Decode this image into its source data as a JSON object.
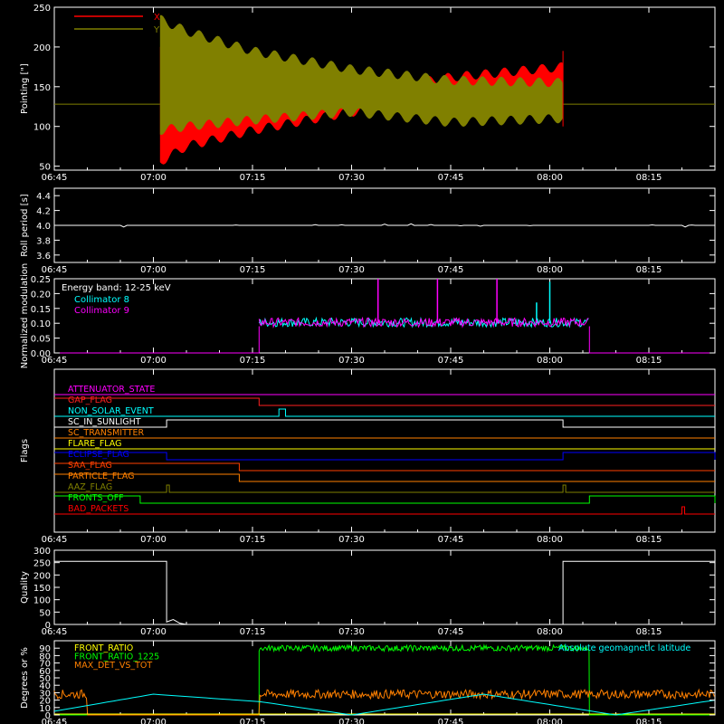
{
  "chart_data": [
    {
      "id": "pointing",
      "type": "line",
      "ylabel": "Pointing [\"]",
      "ylim": [
        45,
        250
      ],
      "yticks": [
        50,
        100,
        150,
        200,
        250
      ],
      "legend": [
        "X",
        "Y"
      ],
      "legend_position": "top-left",
      "xticks": [
        "06:45",
        "07:00",
        "07:15",
        "07:30",
        "07:45",
        "08:00",
        "08:15"
      ],
      "series": [
        {
          "name": "X",
          "color": "#ff0000",
          "envelope": {
            "t": [
              "07:01",
              "07:05",
              "07:15",
              "07:30",
              "07:45",
              "08:02"
            ],
            "low": [
              55,
              75,
              95,
              118,
              130,
              140
            ],
            "high": [
              200,
              165,
              148,
              142,
              162,
              175
            ]
          }
        },
        {
          "name": "Y",
          "color": "#808000",
          "envelope": {
            "t": [
              "07:01",
              "07:05",
              "07:15",
              "07:30",
              "07:45",
              "08:02"
            ],
            "low": [
              95,
              100,
              108,
              118,
              105,
              110
            ],
            "high": [
              235,
              220,
              195,
              172,
              158,
              155
            ]
          }
        }
      ],
      "baseline": {
        "value": 128,
        "color": "#808000"
      },
      "baseline_x": {
        "value": 128,
        "color": "#ff0000"
      },
      "data_start": "07:01",
      "data_end": "08:02"
    },
    {
      "id": "roll",
      "type": "line",
      "ylabel": "Roll period [s]",
      "ylim": [
        3.5,
        4.5
      ],
      "yticks": [
        "3.6",
        "3.8",
        "4.0",
        "4.2",
        "4.4"
      ],
      "xticks": [
        "06:45",
        "07:00",
        "07:15",
        "07:30",
        "07:45",
        "08:00",
        "08:15"
      ],
      "series": [
        {
          "name": "",
          "color": "#ffffff",
          "value": 4.0
        }
      ]
    },
    {
      "id": "modulation",
      "type": "line",
      "ylabel": "Normalized modulation",
      "ylim": [
        0,
        0.25
      ],
      "yticks": [
        "0.00",
        "0.05",
        "0.10",
        "0.15",
        "0.20",
        "0.25"
      ],
      "annotation": "Energy band: 12-25 keV",
      "legend": [
        "Collimator 8",
        "Collimator 9"
      ],
      "xticks": [
        "06:45",
        "07:00",
        "07:15",
        "07:30",
        "07:45",
        "08:00",
        "08:15"
      ],
      "series": [
        {
          "name": "Collimator 8",
          "color": "#00ffff",
          "mean": 0.1,
          "active_start": "07:16",
          "active_end": "08:06",
          "spikes": [
            {
              "t": "08:00",
              "v": 0.24
            },
            {
              "t": "07:58",
              "v": 0.17
            }
          ]
        },
        {
          "name": "Collimator 9",
          "color": "#ff00ff",
          "mean": 0.1,
          "active_start": "07:16",
          "active_end": "08:06",
          "spikes": [
            {
              "t": "07:34",
              "v": 0.25
            },
            {
              "t": "07:43",
              "v": 0.25
            },
            {
              "t": "07:52",
              "v": 0.25
            }
          ]
        }
      ]
    },
    {
      "id": "flags",
      "type": "line",
      "ylabel": "Flags",
      "xticks": [
        "06:45",
        "07:00",
        "07:15",
        "07:30",
        "07:45",
        "08:00",
        "08:15"
      ],
      "flags": [
        {
          "name": "ATTENUATOR_STATE",
          "color": "#ff00ff",
          "segments": []
        },
        {
          "name": "GAP_FLAG",
          "color": "#ff2020",
          "segments": [
            [
              "06:45",
              "07:16",
              1
            ]
          ]
        },
        {
          "name": "NON_SOLAR_EVENT",
          "color": "#00ffff",
          "segments": [
            [
              "07:19",
              "07:20",
              1
            ]
          ]
        },
        {
          "name": "SC_IN_SUNLIGHT",
          "color": "#ffffff",
          "segments": [
            [
              "07:02",
              "08:02",
              1
            ]
          ]
        },
        {
          "name": "SC_TRANSMITTER",
          "color": "#ff8000",
          "segments": []
        },
        {
          "name": "FLARE_FLAG",
          "color": "#ffff00",
          "segments": []
        },
        {
          "name": "ECLIPSE_FLAG",
          "color": "#0000ff",
          "segments": [
            [
              "06:45",
              "07:02",
              1
            ],
            [
              "08:02",
              "08:25",
              1
            ]
          ]
        },
        {
          "name": "SAA_FLAG",
          "color": "#ff4000",
          "segments": [
            [
              "06:45",
              "07:13",
              1
            ]
          ]
        },
        {
          "name": "PARTICLE_FLAG",
          "color": "#ff8000",
          "segments": [
            [
              "06:45",
              "07:13",
              1
            ]
          ]
        },
        {
          "name": "AAZ_FLAG",
          "color": "#808000",
          "segments": [
            [
              "07:02",
              "07:02",
              1
            ],
            [
              "08:02",
              "08:02",
              1
            ]
          ]
        },
        {
          "name": "FRONTS_OFF",
          "color": "#00ff00",
          "segments": [
            [
              "06:45",
              "06:58",
              1
            ],
            [
              "08:06",
              "08:25",
              1
            ]
          ]
        },
        {
          "name": "BAD_PACKETS",
          "color": "#ff0000",
          "segments": [
            [
              "08:20",
              "08:20",
              1
            ]
          ]
        }
      ]
    },
    {
      "id": "quality",
      "type": "line",
      "ylabel": "Quality",
      "ylim": [
        0,
        300
      ],
      "yticks": [
        "0",
        "50",
        "100",
        "150",
        "200",
        "250",
        "300"
      ],
      "xticks": [
        "06:45",
        "07:00",
        "07:15",
        "07:30",
        "07:45",
        "08:00",
        "08:15"
      ],
      "series": [
        {
          "name": "",
          "color": "#ffffff",
          "points": [
            [
              "06:45",
              255
            ],
            [
              "07:02",
              255
            ],
            [
              "07:02",
              10
            ],
            [
              "07:03",
              20
            ],
            [
              "07:04",
              5
            ],
            [
              "07:05",
              0
            ],
            [
              "08:02",
              0
            ],
            [
              "08:02",
              255
            ],
            [
              "08:25",
              255
            ]
          ]
        }
      ]
    },
    {
      "id": "front_ratio",
      "type": "line",
      "ylabel": "Degrees or %",
      "ylim": [
        0,
        100
      ],
      "yticks": [
        "0",
        "10",
        "20",
        "30",
        "40",
        "50",
        "60",
        "70",
        "80",
        "90"
      ],
      "legend": [
        "FRONT_RATIO",
        "FRONT_RATIO_1225",
        "MAX_DET_VS_TOT"
      ],
      "annotation": "Absolute geomagnetic latitude",
      "xticks": [
        "06:45",
        "07:00",
        "07:15",
        "07:30",
        "07:45",
        "08:00",
        "08:15"
      ],
      "series": [
        {
          "name": "FRONT_RATIO",
          "color": "#ffff00",
          "mean": 0
        },
        {
          "name": "FRONT_RATIO_1225",
          "color": "#00ff00",
          "mean": 90,
          "active_start": "07:16",
          "active_end": "08:06"
        },
        {
          "name": "MAX_DET_VS_TOT",
          "color": "#ff8000",
          "mean": 28
        },
        {
          "name": "Absolute geomagnetic latitude",
          "color": "#00ffff",
          "points": [
            [
              "06:45",
              5
            ],
            [
              "07:00",
              28
            ],
            [
              "07:16",
              18
            ],
            [
              "07:30",
              0
            ],
            [
              "07:50",
              28
            ],
            [
              "08:10",
              0
            ],
            [
              "08:25",
              20
            ]
          ]
        }
      ]
    }
  ]
}
